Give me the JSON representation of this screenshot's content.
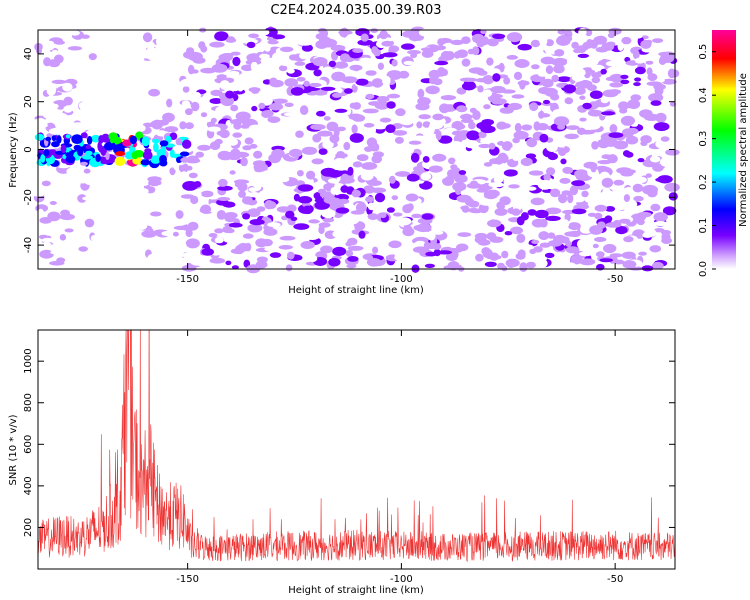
{
  "title": "C2E4.2024.035.00.39.R03",
  "chart_data": [
    {
      "type": "heatmap",
      "xlabel": "Height of straight line (km)",
      "ylabel": "Frequency (Hz)",
      "xlim": [
        -185,
        -36
      ],
      "ylim": [
        -50,
        50
      ],
      "x_ticks": [
        -150,
        -100,
        -50
      ],
      "y_ticks": [
        -40,
        -20,
        0,
        20,
        40
      ],
      "colorbar": {
        "label": "Normalized spectral amplitude",
        "range": [
          0,
          0.55
        ],
        "ticks": [
          0.0,
          0.1,
          0.2,
          0.3,
          0.4,
          0.5
        ],
        "colors": [
          "#ffffff",
          "#cc99ff",
          "#7700ff",
          "#0000ff",
          "#00ffff",
          "#00ff00",
          "#ffff00",
          "#ff0000",
          "#ff0099"
        ]
      },
      "features": [
        {
          "x_start": -185,
          "x_end": -150,
          "frequency": 0,
          "amplitude": 0.3
        },
        {
          "x_start": -168,
          "x_end": -161,
          "frequency": 0,
          "amplitude": 0.55
        }
      ]
    },
    {
      "type": "line",
      "xlabel": "Height of straight line (km)",
      "ylabel": "SNR (10 * v/v)",
      "xlim": [
        -185,
        -36
      ],
      "ylim": [
        0,
        1150
      ],
      "x_ticks": [
        -150,
        -100,
        -50
      ],
      "y_ticks": [
        200,
        400,
        600,
        800,
        1000
      ],
      "color": "#ee3333",
      "x": [
        -185,
        -180,
        -175,
        -170,
        -166,
        -164,
        -163,
        -161,
        -159,
        -157,
        -155,
        -153,
        -151,
        -149,
        -145,
        -130,
        -110,
        -90,
        -70,
        -50,
        -40,
        -36
      ],
      "y": [
        140,
        160,
        150,
        200,
        300,
        900,
        600,
        380,
        450,
        300,
        250,
        260,
        240,
        110,
        100,
        110,
        115,
        105,
        110,
        115,
        105,
        110
      ]
    }
  ]
}
